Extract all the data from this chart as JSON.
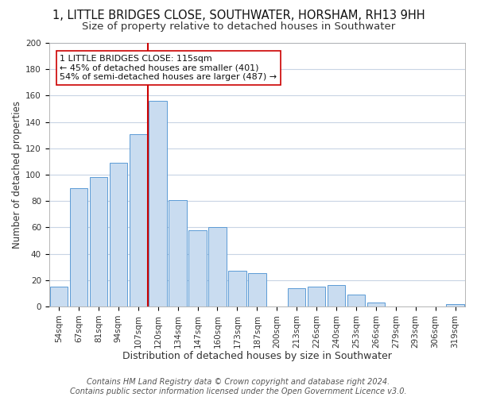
{
  "title": "1, LITTLE BRIDGES CLOSE, SOUTHWATER, HORSHAM, RH13 9HH",
  "subtitle": "Size of property relative to detached houses in Southwater",
  "xlabel": "Distribution of detached houses by size in Southwater",
  "ylabel": "Number of detached properties",
  "bar_labels": [
    "54sqm",
    "67sqm",
    "81sqm",
    "94sqm",
    "107sqm",
    "120sqm",
    "134sqm",
    "147sqm",
    "160sqm",
    "173sqm",
    "187sqm",
    "200sqm",
    "213sqm",
    "226sqm",
    "240sqm",
    "253sqm",
    "266sqm",
    "279sqm",
    "293sqm",
    "306sqm",
    "319sqm"
  ],
  "bar_heights": [
    15,
    90,
    98,
    109,
    131,
    156,
    81,
    58,
    60,
    27,
    25,
    0,
    14,
    15,
    16,
    9,
    3,
    0,
    0,
    0,
    2
  ],
  "bar_color": "#c9dcf0",
  "bar_edge_color": "#5b9bd5",
  "grid_color": "#c8d4e4",
  "vline_x": 4.5,
  "vline_color": "#cc0000",
  "annotation_text": "1 LITTLE BRIDGES CLOSE: 115sqm\n← 45% of detached houses are smaller (401)\n54% of semi-detached houses are larger (487) →",
  "footer_line1": "Contains HM Land Registry data © Crown copyright and database right 2024.",
  "footer_line2": "Contains public sector information licensed under the Open Government Licence v3.0.",
  "ylim": [
    0,
    200
  ],
  "yticks": [
    0,
    20,
    40,
    60,
    80,
    100,
    120,
    140,
    160,
    180,
    200
  ],
  "title_fontsize": 10.5,
  "subtitle_fontsize": 9.5,
  "xlabel_fontsize": 9,
  "ylabel_fontsize": 8.5,
  "tick_fontsize": 7.5,
  "footer_fontsize": 7,
  "annotation_fontsize": 8
}
